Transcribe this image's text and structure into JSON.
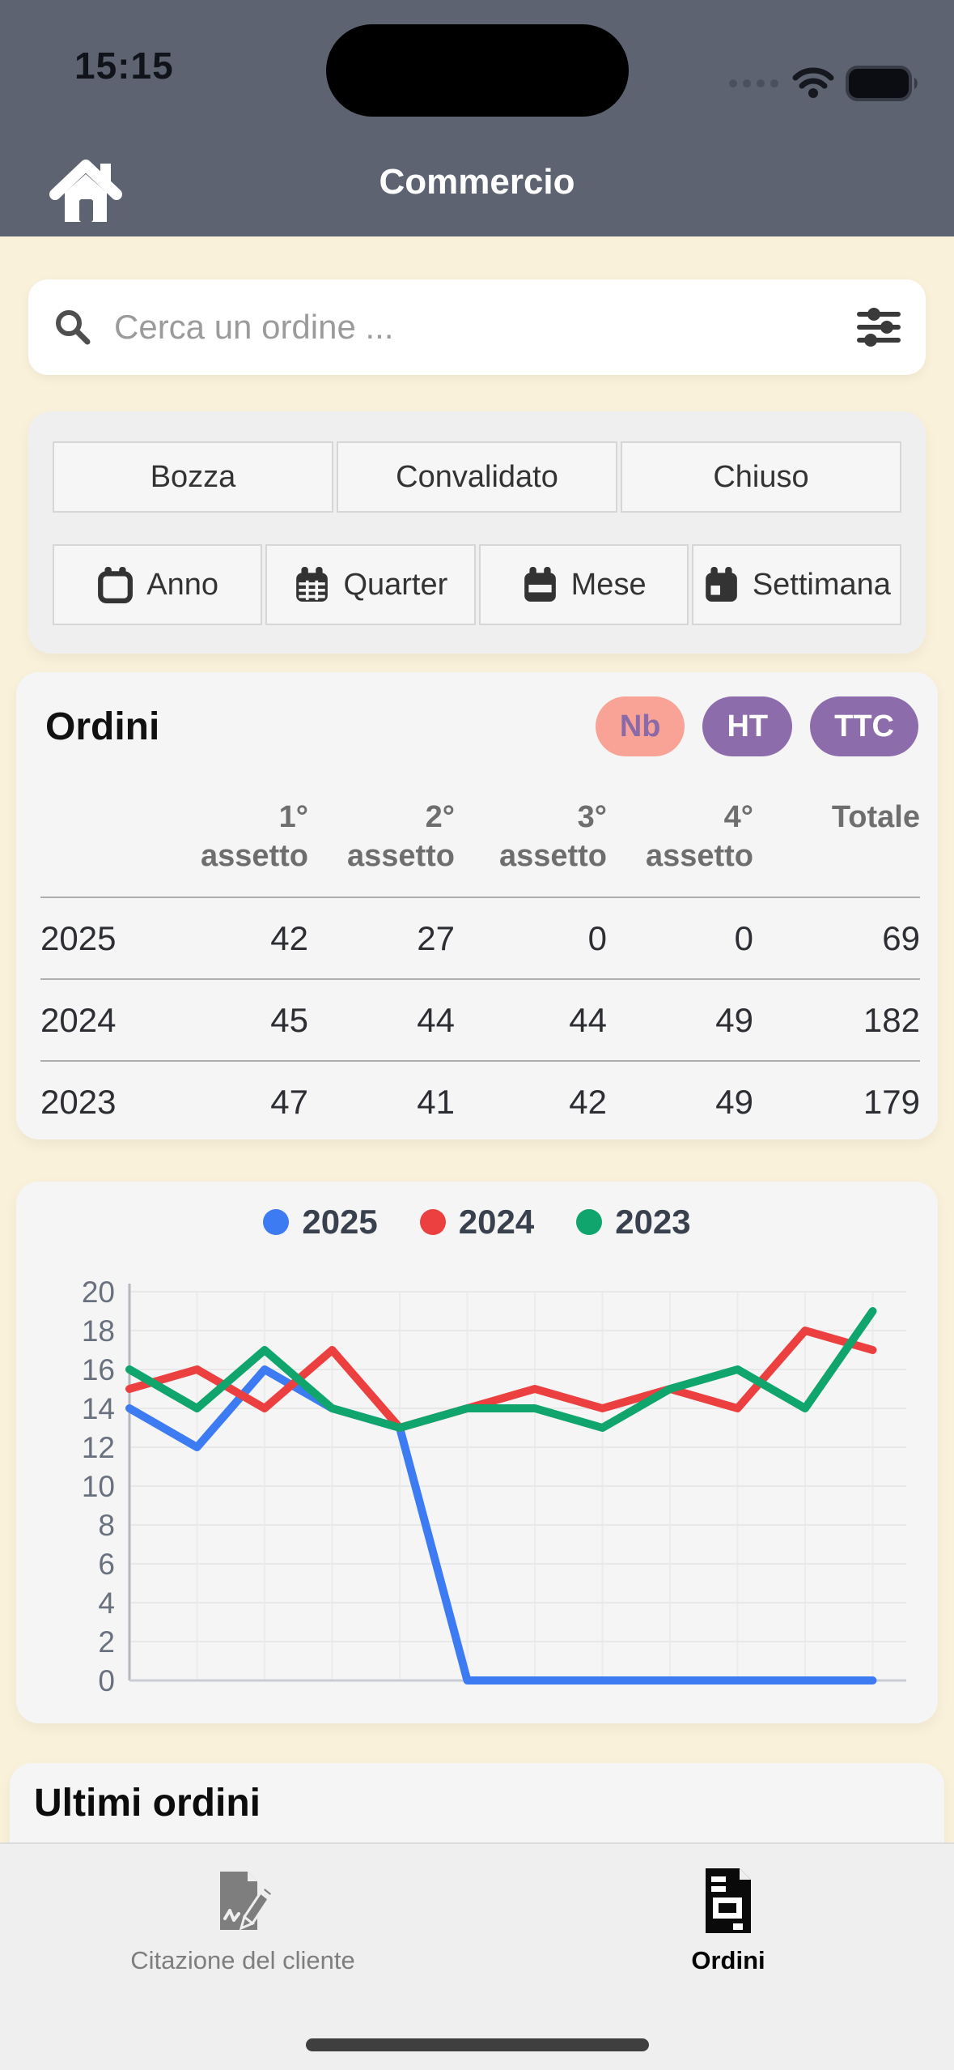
{
  "status_bar": {
    "time": "15:15"
  },
  "header": {
    "title": "Commercio"
  },
  "search": {
    "placeholder": "Cerca un ordine ..."
  },
  "filters": {
    "status": [
      {
        "label": "Bozza"
      },
      {
        "label": "Convalidato"
      },
      {
        "label": "Chiuso"
      }
    ],
    "period": [
      {
        "label": "Anno",
        "icon": "calendar-outline-icon"
      },
      {
        "label": "Quarter",
        "icon": "calendar-grid-icon"
      },
      {
        "label": "Mese",
        "icon": "calendar-month-icon"
      },
      {
        "label": "Settimana",
        "icon": "calendar-week-icon"
      }
    ]
  },
  "orders": {
    "title": "Ordini",
    "badges": [
      {
        "label": "Nb",
        "bg": "#f9a296",
        "text": "#8b6aa8"
      },
      {
        "label": "HT",
        "bg": "#8d6cab",
        "text": "#ffffff"
      },
      {
        "label": "TTC",
        "bg": "#8d6cab",
        "text": "#ffffff"
      }
    ],
    "columns": [
      {
        "top": "1°",
        "bottom": "assetto"
      },
      {
        "top": "2°",
        "bottom": "assetto"
      },
      {
        "top": "3°",
        "bottom": "assetto"
      },
      {
        "top": "4°",
        "bottom": "assetto"
      },
      {
        "top": "Totale",
        "bottom": ""
      }
    ],
    "rows": [
      {
        "year": "2025",
        "values": [
          "42",
          "27",
          "0",
          "0",
          "69"
        ]
      },
      {
        "year": "2024",
        "values": [
          "45",
          "44",
          "44",
          "49",
          "182"
        ]
      },
      {
        "year": "2023",
        "values": [
          "47",
          "41",
          "42",
          "49",
          "179"
        ]
      }
    ]
  },
  "chart_data": {
    "type": "line",
    "title": "",
    "x": [
      1,
      2,
      3,
      4,
      5,
      6,
      7,
      8,
      9,
      10,
      11,
      12
    ],
    "series": [
      {
        "name": "2025",
        "color": "#3d7bf3",
        "values": [
          14,
          12,
          16,
          14,
          13,
          0,
          0,
          0,
          0,
          0,
          0,
          0
        ]
      },
      {
        "name": "2024",
        "color": "#ec4040",
        "values": [
          15,
          16,
          14,
          17,
          13,
          14,
          15,
          14,
          15,
          14,
          18,
          17
        ]
      },
      {
        "name": "2023",
        "color": "#0fa56d",
        "values": [
          16,
          14,
          17,
          14,
          13,
          14,
          14,
          13,
          15,
          16,
          14,
          19
        ]
      }
    ],
    "ylim": [
      0,
      20
    ],
    "ytick_step": 2,
    "grid": true,
    "legend_position": "top",
    "x_tick_labels": "none"
  },
  "latest_orders": {
    "title": "Ultimi ordini"
  },
  "tabbar": {
    "tabs": [
      {
        "label": "Citazione del cliente",
        "icon": "file-signature-icon",
        "active": false
      },
      {
        "label": "Ordini",
        "icon": "file-invoice-icon",
        "active": true
      }
    ]
  },
  "colors": {
    "header_bg": "#5d6370",
    "page_bg": "#f9f1d9",
    "card_bg": "#f5f5f5",
    "badge_salmon": "#f9a296",
    "badge_purple": "#8d6cab"
  },
  "icons": [
    "home-icon",
    "search-icon",
    "tune-icon",
    "calendar-outline-icon",
    "calendar-grid-icon",
    "calendar-month-icon",
    "calendar-week-icon",
    "wifi-icon",
    "battery-icon",
    "cellular-dots-icon",
    "file-signature-icon",
    "file-invoice-icon"
  ]
}
